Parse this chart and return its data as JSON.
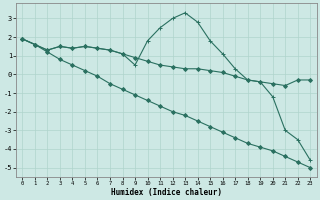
{
  "xlabel": "Humidex (Indice chaleur)",
  "xlim": [
    -0.5,
    23.5
  ],
  "ylim": [
    -5.5,
    3.8
  ],
  "yticks": [
    -5,
    -4,
    -3,
    -2,
    -1,
    0,
    1,
    2,
    3
  ],
  "xticks": [
    0,
    1,
    2,
    3,
    4,
    5,
    6,
    7,
    8,
    9,
    10,
    11,
    12,
    13,
    14,
    15,
    16,
    17,
    18,
    19,
    20,
    21,
    22,
    23
  ],
  "background_color": "#cde8e4",
  "grid_color": "#b0d4cc",
  "line_color": "#2a7060",
  "series": [
    {
      "x": [
        0,
        1,
        2,
        3,
        4,
        5,
        6,
        7,
        8,
        9,
        10,
        11,
        12,
        13,
        14,
        15,
        16,
        17,
        18,
        19,
        20,
        21,
        22,
        23
      ],
      "y": [
        1.9,
        1.6,
        1.3,
        1.5,
        1.4,
        1.5,
        1.4,
        1.3,
        1.1,
        0.9,
        0.7,
        0.5,
        0.4,
        0.3,
        0.3,
        0.2,
        0.1,
        -0.1,
        -0.3,
        -0.4,
        -0.5,
        -0.6,
        -0.3,
        -0.3
      ],
      "marker": "D",
      "markersize": 2.0,
      "linewidth": 0.8
    },
    {
      "x": [
        0,
        1,
        2,
        3,
        4,
        5,
        6,
        7,
        8,
        9,
        10,
        11,
        12,
        13,
        14,
        15,
        16,
        17,
        18,
        19,
        20,
        21,
        22,
        23
      ],
      "y": [
        1.9,
        1.6,
        1.3,
        1.5,
        1.4,
        1.5,
        1.4,
        1.3,
        1.1,
        0.5,
        1.8,
        2.5,
        3.0,
        3.3,
        2.8,
        1.8,
        1.1,
        0.3,
        -0.3,
        -0.4,
        -1.2,
        -3.0,
        -3.5,
        -4.6
      ],
      "marker": "+",
      "markersize": 3.5,
      "linewidth": 0.8
    },
    {
      "x": [
        0,
        1,
        2,
        3,
        4,
        5,
        6,
        7,
        8,
        9,
        10,
        11,
        12,
        13,
        14,
        15,
        16,
        17,
        18,
        19,
        20,
        21,
        22,
        23
      ],
      "y": [
        1.9,
        1.6,
        1.2,
        0.8,
        0.5,
        0.2,
        -0.1,
        -0.5,
        -0.8,
        -1.1,
        -1.4,
        -1.7,
        -2.0,
        -2.2,
        -2.5,
        -2.8,
        -3.1,
        -3.4,
        -3.7,
        -3.9,
        -4.1,
        -4.4,
        -4.7,
        -5.0
      ],
      "marker": "D",
      "markersize": 2.0,
      "linewidth": 0.8
    }
  ]
}
